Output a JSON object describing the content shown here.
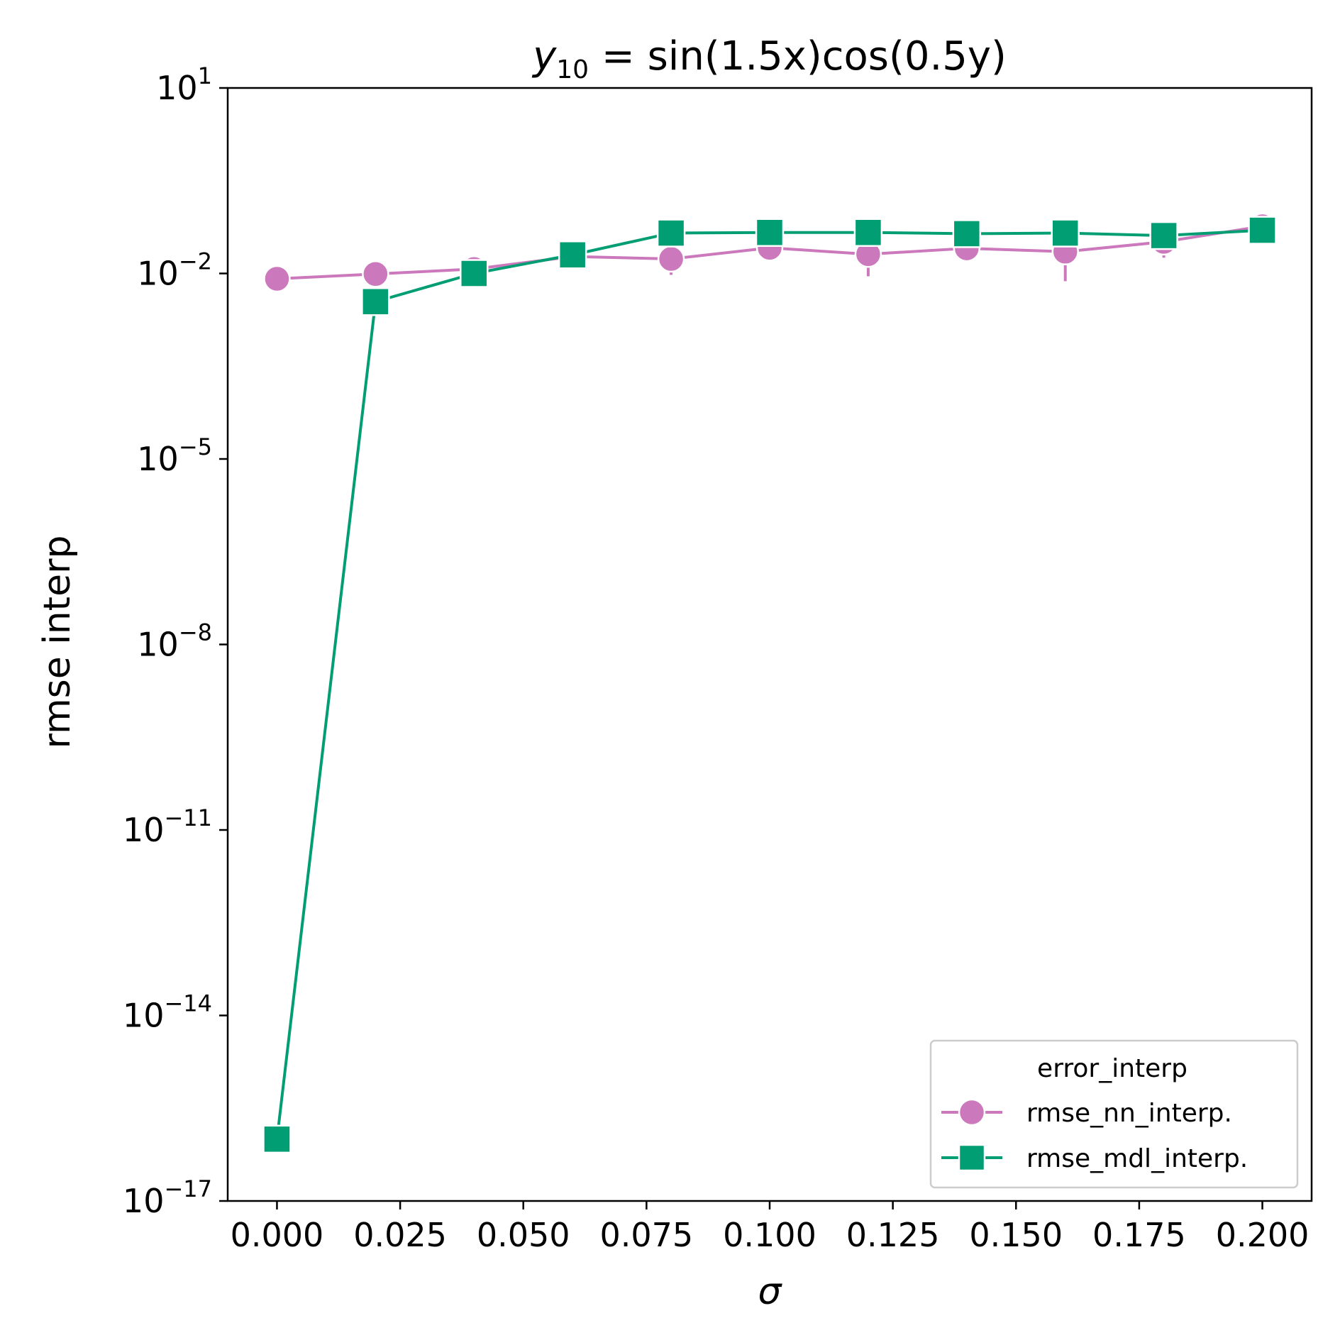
{
  "chart_data": {
    "type": "line",
    "title": {
      "prefix": "y",
      "subscript": "10",
      "suffix": " = sin(1.5x)cos(0.5y)"
    },
    "xlabel": "σ",
    "ylabel": "rmse interp",
    "y_scale": "log",
    "ylim": [
      1e-17,
      10
    ],
    "xlim": [
      -0.01,
      0.21
    ],
    "grid": false,
    "x_ticks": [
      0.0,
      0.025,
      0.05,
      0.075,
      0.1,
      0.125,
      0.15,
      0.175,
      0.2
    ],
    "x_tick_labels": [
      "0.000",
      "0.025",
      "0.050",
      "0.075",
      "0.100",
      "0.125",
      "0.150",
      "0.175",
      "0.200"
    ],
    "y_ticks": [
      {
        "exp": 1,
        "base": "10",
        "sup": "1"
      },
      {
        "exp": -2,
        "base": "10",
        "sup": "−2"
      },
      {
        "exp": -5,
        "base": "10",
        "sup": "−5"
      },
      {
        "exp": -8,
        "base": "10",
        "sup": "−8"
      },
      {
        "exp": -11,
        "base": "10",
        "sup": "−11"
      },
      {
        "exp": -14,
        "base": "10",
        "sup": "−14"
      },
      {
        "exp": -17,
        "base": "10",
        "sup": "−17"
      }
    ],
    "legend": {
      "title": "error_interp",
      "placement": "lower-right"
    },
    "x": [
      0.0,
      0.02,
      0.04,
      0.06,
      0.08,
      0.1,
      0.12,
      0.14,
      0.16,
      0.18,
      0.2
    ],
    "series": [
      {
        "name": "rmse_nn_interp.",
        "color": "#cc78bc",
        "marker": "circle",
        "values": [
          0.0082,
          0.0098,
          0.0118,
          0.0188,
          0.0172,
          0.026,
          0.0205,
          0.0255,
          0.0225,
          0.0325,
          0.058
        ],
        "error_low": [
          null,
          null,
          null,
          null,
          0.0095,
          null,
          0.009,
          null,
          0.0075,
          0.018,
          null
        ],
        "error_high": [
          null,
          null,
          null,
          null,
          null,
          null,
          null,
          null,
          null,
          null,
          0.088
        ]
      },
      {
        "name": "rmse_mdl_interp.",
        "color": "#029e73",
        "marker": "square",
        "values": [
          1e-16,
          0.0035,
          0.01,
          0.02,
          0.045,
          0.046,
          0.046,
          0.044,
          0.045,
          0.041,
          0.05
        ],
        "error_low": [
          null,
          null,
          null,
          null,
          null,
          null,
          null,
          null,
          null,
          null,
          null
        ],
        "error_high": [
          null,
          null,
          null,
          null,
          null,
          null,
          null,
          null,
          null,
          null,
          null
        ]
      }
    ]
  }
}
